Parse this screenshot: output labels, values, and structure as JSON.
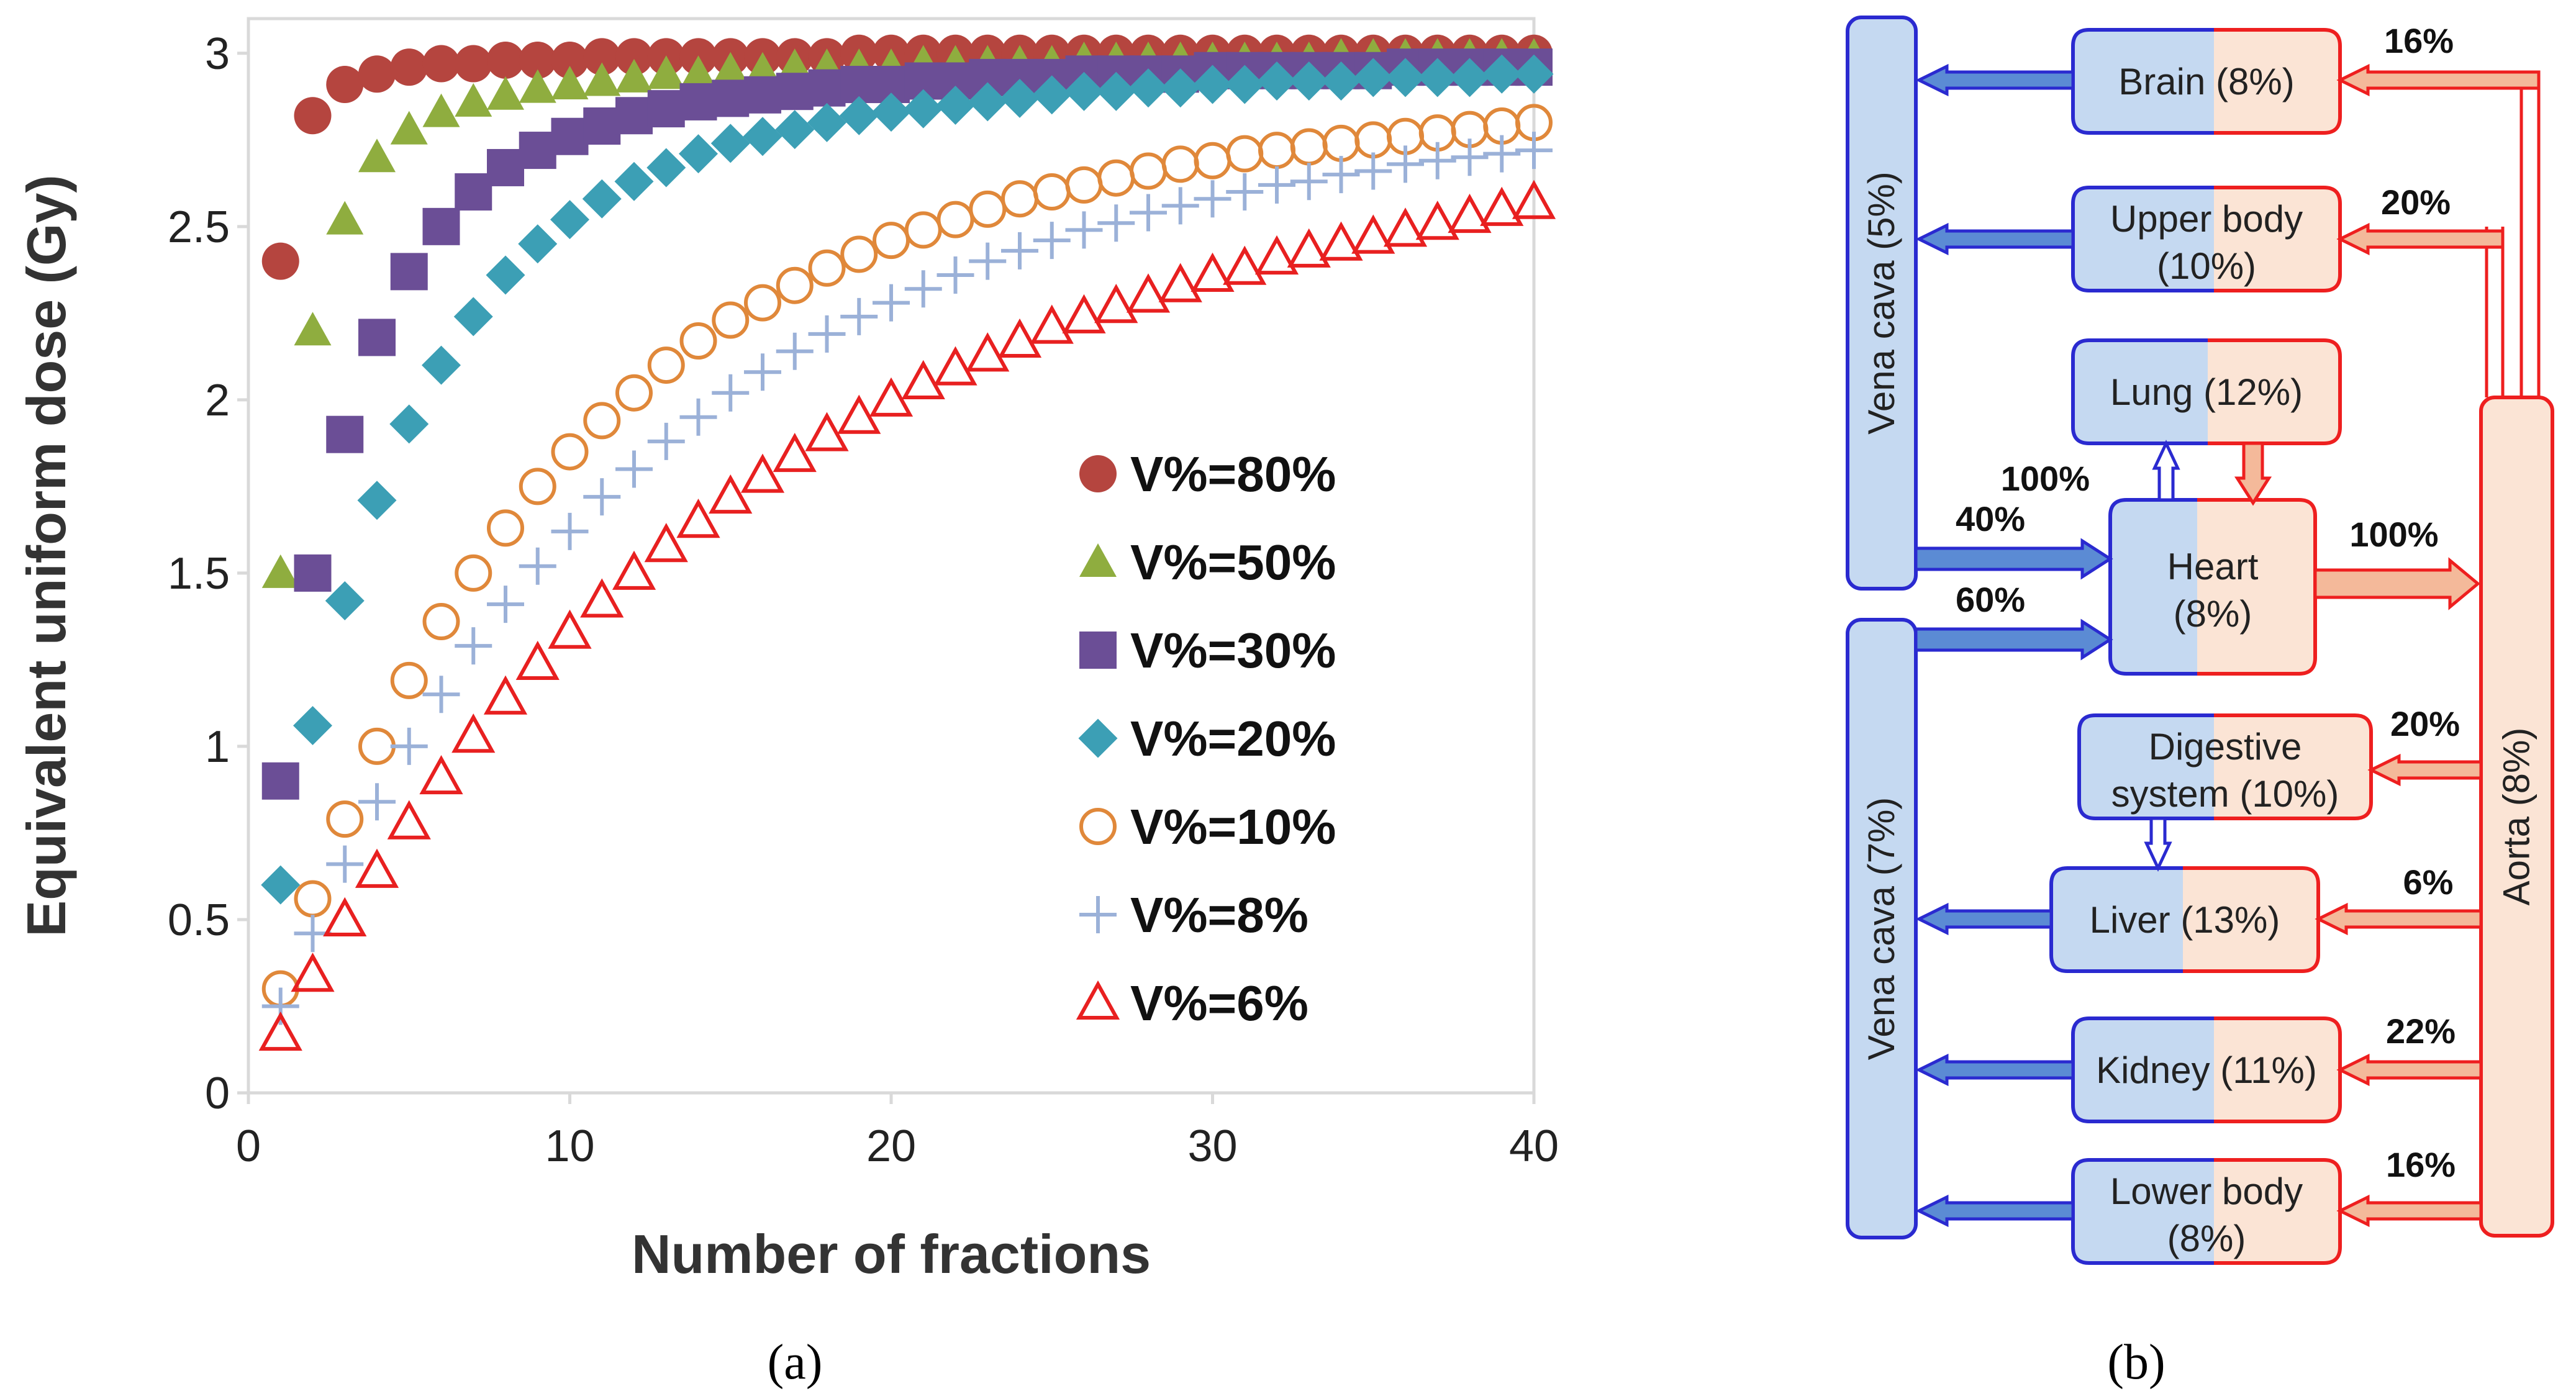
{
  "chart_data": {
    "type": "scatter",
    "title": "",
    "xlabel": "Number of fractions",
    "ylabel": "Equivalent uniform dose (Gy)",
    "xlim": [
      0,
      40
    ],
    "ylim": [
      0,
      3.1
    ],
    "xticks": [
      0,
      10,
      20,
      30,
      40
    ],
    "yticks": [
      0,
      0.5,
      1,
      1.5,
      2,
      2.5,
      3
    ],
    "grid": false,
    "legend_position": "center-right",
    "x": [
      1,
      2,
      3,
      4,
      5,
      6,
      7,
      8,
      9,
      10,
      11,
      12,
      13,
      14,
      15,
      16,
      17,
      18,
      19,
      20,
      21,
      22,
      23,
      24,
      25,
      26,
      27,
      28,
      29,
      30,
      31,
      32,
      33,
      34,
      35,
      36,
      37,
      38,
      39,
      40
    ],
    "series": [
      {
        "name": "V%=80%",
        "color": "#b5453f",
        "marker": "circle-filled",
        "values": [
          2.4,
          2.82,
          2.91,
          2.94,
          2.96,
          2.97,
          2.97,
          2.98,
          2.98,
          2.98,
          2.99,
          2.99,
          2.99,
          2.99,
          2.99,
          2.99,
          2.99,
          2.99,
          3.0,
          3.0,
          3.0,
          3.0,
          3.0,
          3.0,
          3.0,
          3.0,
          3.0,
          3.0,
          3.0,
          3.0,
          3.0,
          3.0,
          3.0,
          3.0,
          3.0,
          3.0,
          3.0,
          3.0,
          3.0,
          3.0
        ]
      },
      {
        "name": "V%=50%",
        "color": "#8fad3f",
        "marker": "triangle-filled",
        "values": [
          1.5,
          2.2,
          2.52,
          2.7,
          2.78,
          2.83,
          2.86,
          2.88,
          2.9,
          2.91,
          2.92,
          2.93,
          2.94,
          2.94,
          2.95,
          2.95,
          2.96,
          2.96,
          2.96,
          2.96,
          2.97,
          2.97,
          2.97,
          2.97,
          2.97,
          2.98,
          2.98,
          2.98,
          2.98,
          2.98,
          2.98,
          2.98,
          2.98,
          2.99,
          2.99,
          2.99,
          2.99,
          2.99,
          2.99,
          2.99
        ]
      },
      {
        "name": "V%=30%",
        "color": "#6b4e96",
        "marker": "square-filled",
        "values": [
          0.9,
          1.5,
          1.9,
          2.18,
          2.37,
          2.5,
          2.6,
          2.67,
          2.72,
          2.76,
          2.79,
          2.82,
          2.84,
          2.86,
          2.87,
          2.88,
          2.89,
          2.9,
          2.91,
          2.91,
          2.92,
          2.92,
          2.93,
          2.93,
          2.93,
          2.94,
          2.94,
          2.94,
          2.94,
          2.95,
          2.95,
          2.95,
          2.95,
          2.95,
          2.95,
          2.96,
          2.96,
          2.96,
          2.96,
          2.96
        ]
      },
      {
        "name": "V%=20%",
        "color": "#3c9fb5",
        "marker": "diamond-filled",
        "values": [
          0.6,
          1.06,
          1.42,
          1.71,
          1.93,
          2.1,
          2.24,
          2.36,
          2.45,
          2.52,
          2.58,
          2.63,
          2.67,
          2.71,
          2.74,
          2.76,
          2.78,
          2.8,
          2.82,
          2.83,
          2.84,
          2.85,
          2.86,
          2.87,
          2.88,
          2.89,
          2.89,
          2.9,
          2.9,
          2.91,
          2.91,
          2.92,
          2.92,
          2.92,
          2.93,
          2.93,
          2.93,
          2.93,
          2.94,
          2.94
        ]
      },
      {
        "name": "V%=10%",
        "color": "#e0883a",
        "marker": "circle-open",
        "values": [
          0.3,
          0.56,
          0.79,
          1.0,
          1.19,
          1.36,
          1.5,
          1.63,
          1.75,
          1.85,
          1.94,
          2.02,
          2.1,
          2.17,
          2.23,
          2.28,
          2.33,
          2.38,
          2.42,
          2.46,
          2.49,
          2.52,
          2.55,
          2.58,
          2.6,
          2.62,
          2.64,
          2.66,
          2.68,
          2.69,
          2.71,
          2.72,
          2.73,
          2.74,
          2.75,
          2.76,
          2.77,
          2.78,
          2.79,
          2.8
        ]
      },
      {
        "name": "V%=8%",
        "color": "#9bb1d8",
        "marker": "plus",
        "values": [
          0.25,
          0.46,
          0.66,
          0.84,
          1.0,
          1.15,
          1.29,
          1.41,
          1.52,
          1.62,
          1.72,
          1.8,
          1.88,
          1.95,
          2.02,
          2.08,
          2.14,
          2.19,
          2.24,
          2.28,
          2.32,
          2.36,
          2.4,
          2.43,
          2.46,
          2.49,
          2.51,
          2.54,
          2.56,
          2.58,
          2.6,
          2.62,
          2.63,
          2.65,
          2.66,
          2.68,
          2.69,
          2.7,
          2.71,
          2.72
        ]
      },
      {
        "name": "V%=6%",
        "color": "#e82020",
        "marker": "triangle-open",
        "values": [
          0.17,
          0.34,
          0.5,
          0.64,
          0.78,
          0.91,
          1.03,
          1.14,
          1.24,
          1.33,
          1.42,
          1.5,
          1.58,
          1.65,
          1.72,
          1.78,
          1.84,
          1.9,
          1.95,
          2.0,
          2.05,
          2.09,
          2.13,
          2.17,
          2.21,
          2.24,
          2.27,
          2.3,
          2.33,
          2.36,
          2.38,
          2.41,
          2.43,
          2.45,
          2.47,
          2.49,
          2.51,
          2.53,
          2.55,
          2.57
        ]
      }
    ]
  },
  "panel_a_label": "(a)",
  "panel_b_label": "(b)",
  "diagram": {
    "colors": {
      "venous_fill": "#c5d9f1",
      "venous_stroke": "#2a2ad0",
      "arterial_fill": "#fbe4d5",
      "arterial_stroke": "#ee1f1f",
      "venous_arrow": "#5b8bd4",
      "arterial_arrow": "#f4b99a"
    },
    "vena_cava_upper": "Vena cava (5%)",
    "vena_cava_lower": "Vena cava (7%)",
    "aorta": "Aorta (8%)",
    "organs": {
      "brain": {
        "label": "Brain (8%)",
        "flow": "16%"
      },
      "upper_body": {
        "line1": "Upper body",
        "line2": "(10%)",
        "flow": "20%"
      },
      "lung": {
        "label": "Lung (12%)",
        "flow": "100%"
      },
      "heart": {
        "line1": "Heart",
        "line2": "(8%)",
        "flow_in_upper": "40%",
        "flow_in_lower": "60%",
        "flow_out": "100%"
      },
      "digestive": {
        "line1": "Digestive",
        "line2": "system (10%)",
        "flow": "20%"
      },
      "liver": {
        "label": "Liver (13%)",
        "flow": "6%"
      },
      "kidney": {
        "label": "Kidney (11%)",
        "flow": "22%"
      },
      "lower_body": {
        "line1": "Lower body",
        "line2": "(8%)",
        "flow": "16%"
      }
    }
  }
}
